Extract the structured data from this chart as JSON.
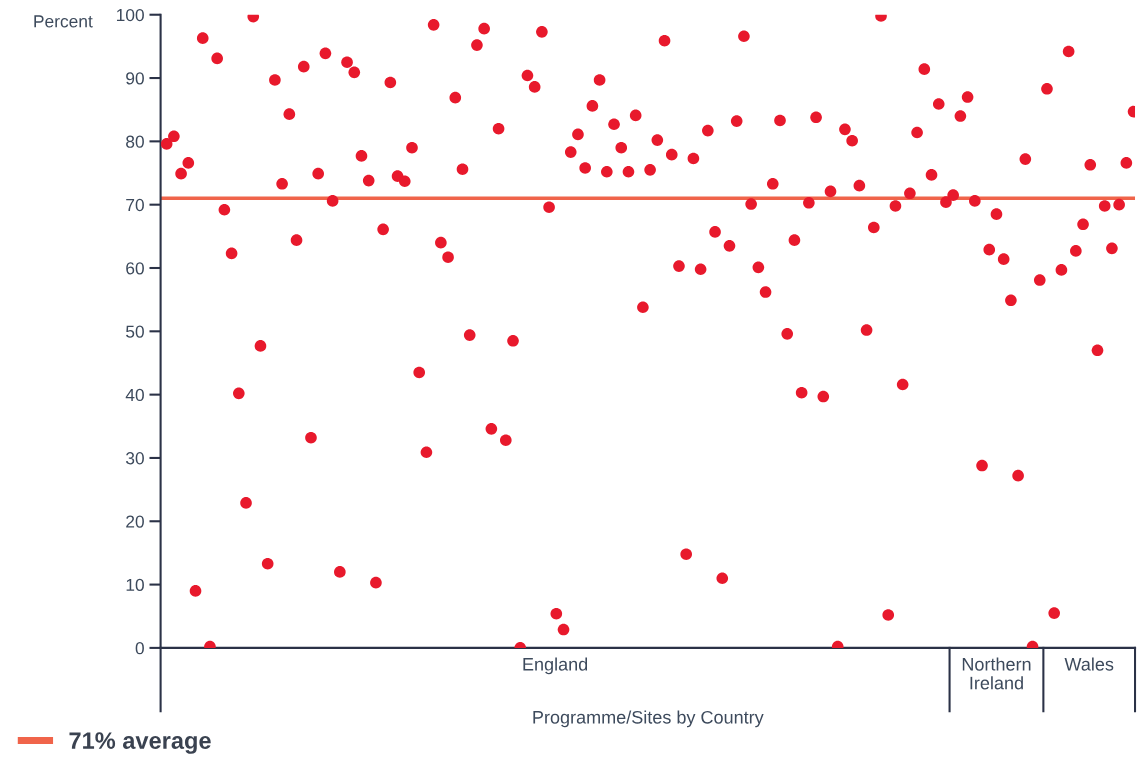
{
  "chart_data": {
    "type": "scatter",
    "xlabel": "Programme/Sites by Country",
    "ylabel": "Percent",
    "categories": [
      null,
      null,
      null,
      null,
      null,
      null,
      null,
      null,
      null,
      null,
      null,
      null,
      null,
      null,
      null,
      null,
      null,
      null,
      null,
      null,
      null,
      null,
      null,
      null,
      null,
      null,
      null,
      null,
      null,
      null,
      null,
      null,
      null,
      null,
      null,
      null,
      null,
      null,
      null,
      null,
      null,
      null,
      null,
      null,
      null,
      null,
      null,
      null,
      null,
      null,
      null,
      null,
      null,
      null,
      null,
      null,
      null,
      null,
      null,
      null,
      null,
      null,
      null,
      null,
      null,
      null,
      null,
      null,
      null,
      null,
      null,
      null,
      null,
      null,
      null,
      null,
      null,
      null,
      null,
      null,
      null,
      null,
      null,
      null,
      null,
      null,
      null,
      null,
      null,
      null,
      null,
      null,
      null,
      null,
      null,
      null,
      null,
      null,
      null,
      null,
      null,
      null,
      null,
      null,
      null,
      null,
      null,
      null,
      null,
      null,
      null,
      null,
      null,
      null,
      null,
      null,
      null,
      null,
      null,
      null,
      null,
      null,
      null,
      null,
      null,
      null,
      null,
      null,
      null,
      null,
      null,
      null,
      null,
      null,
      null
    ],
    "values": [
      79.6,
      80.8,
      74.9,
      76.6,
      9.0,
      96.3,
      0.2,
      93.1,
      69.2,
      62.3,
      40.2,
      22.9,
      99.7,
      47.7,
      13.3,
      89.7,
      73.3,
      84.3,
      64.4,
      91.8,
      33.2,
      74.9,
      93.9,
      70.6,
      12.0,
      92.5,
      90.9,
      77.7,
      73.8,
      10.3,
      66.1,
      89.3,
      74.5,
      73.7,
      79.0,
      43.5,
      30.9,
      98.4,
      64.0,
      61.7,
      86.9,
      75.6,
      49.4,
      95.2,
      97.8,
      34.6,
      82.0,
      32.8,
      48.5,
      0.0,
      90.4,
      88.6,
      97.3,
      69.6,
      5.4,
      2.9,
      78.3,
      81.1,
      75.8,
      85.6,
      89.7,
      75.2,
      82.7,
      79.0,
      75.2,
      84.1,
      53.8,
      75.5,
      80.2,
      95.9,
      77.9,
      60.3,
      14.8,
      77.3,
      59.8,
      81.7,
      65.7,
      11.0,
      63.5,
      83.2,
      96.6,
      70.1,
      60.1,
      56.2,
      73.3,
      83.3,
      49.6,
      64.4,
      40.3,
      70.3,
      83.8,
      39.7,
      72.1,
      0.2,
      81.9,
      80.1,
      73.0,
      50.2,
      66.4,
      99.8,
      5.2,
      69.8,
      41.6,
      71.8,
      81.4,
      91.4,
      74.7,
      85.9,
      70.4,
      71.5,
      84.0,
      87.0,
      70.6,
      28.8,
      62.9,
      68.5,
      61.4,
      54.9,
      27.2,
      77.2,
      0.2,
      58.1,
      88.3,
      5.5,
      59.7,
      94.2,
      62.7,
      66.9,
      76.3,
      47.0,
      69.8,
      63.1,
      70.0,
      76.6,
      84.7
    ],
    "color": "#e8192c",
    "marker": "circle",
    "ylim": [
      0,
      100
    ],
    "yticks": [
      0,
      10,
      20,
      30,
      40,
      50,
      60,
      70,
      80,
      90,
      100
    ],
    "grid": false,
    "legend": "bottom left",
    "ref_lines": [
      {
        "axis": "y",
        "value": 71,
        "label": "71% average",
        "color": "#f0644a"
      }
    ],
    "annotations": [
      "England",
      "Northern Ireland",
      "Wales"
    ]
  }
}
